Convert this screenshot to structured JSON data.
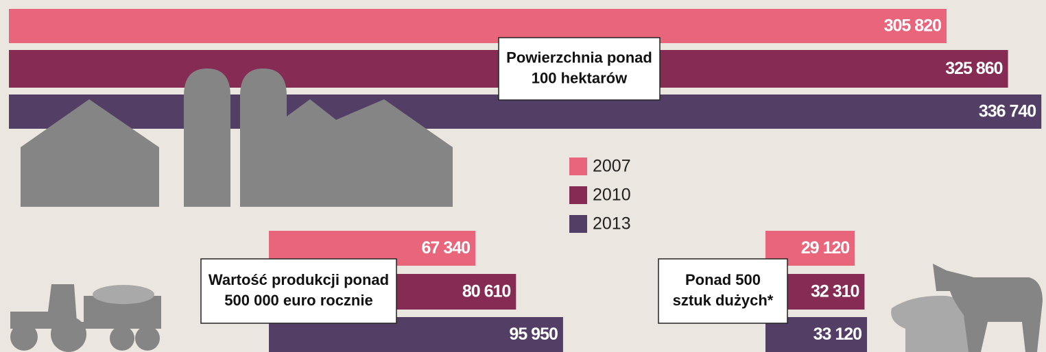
{
  "legend": [
    {
      "name": "2007",
      "color": "#e8657c"
    },
    {
      "name": "2010",
      "color": "#862c54"
    },
    {
      "name": "2013",
      "color": "#533e66"
    }
  ],
  "chart_data": [
    {
      "type": "bar",
      "title": [
        "Powierzchnia ponad",
        "100 hektarów"
      ],
      "values": [
        305820,
        325860,
        336740
      ],
      "value_labels": [
        "305 820",
        "325 860",
        "336 740"
      ]
    },
    {
      "type": "bar",
      "title": [
        "Wartość produkcji ponad",
        "500 000 euro rocznie"
      ],
      "values": [
        67340,
        80610,
        95950
      ],
      "value_labels": [
        "67 340",
        "80 610",
        "95 950"
      ]
    },
    {
      "type": "bar",
      "title": [
        "Ponad 500",
        "sztuk dużych*"
      ],
      "values": [
        29120,
        32310,
        33120
      ],
      "value_labels": [
        "29 120",
        "32 310",
        "33 120"
      ]
    }
  ]
}
